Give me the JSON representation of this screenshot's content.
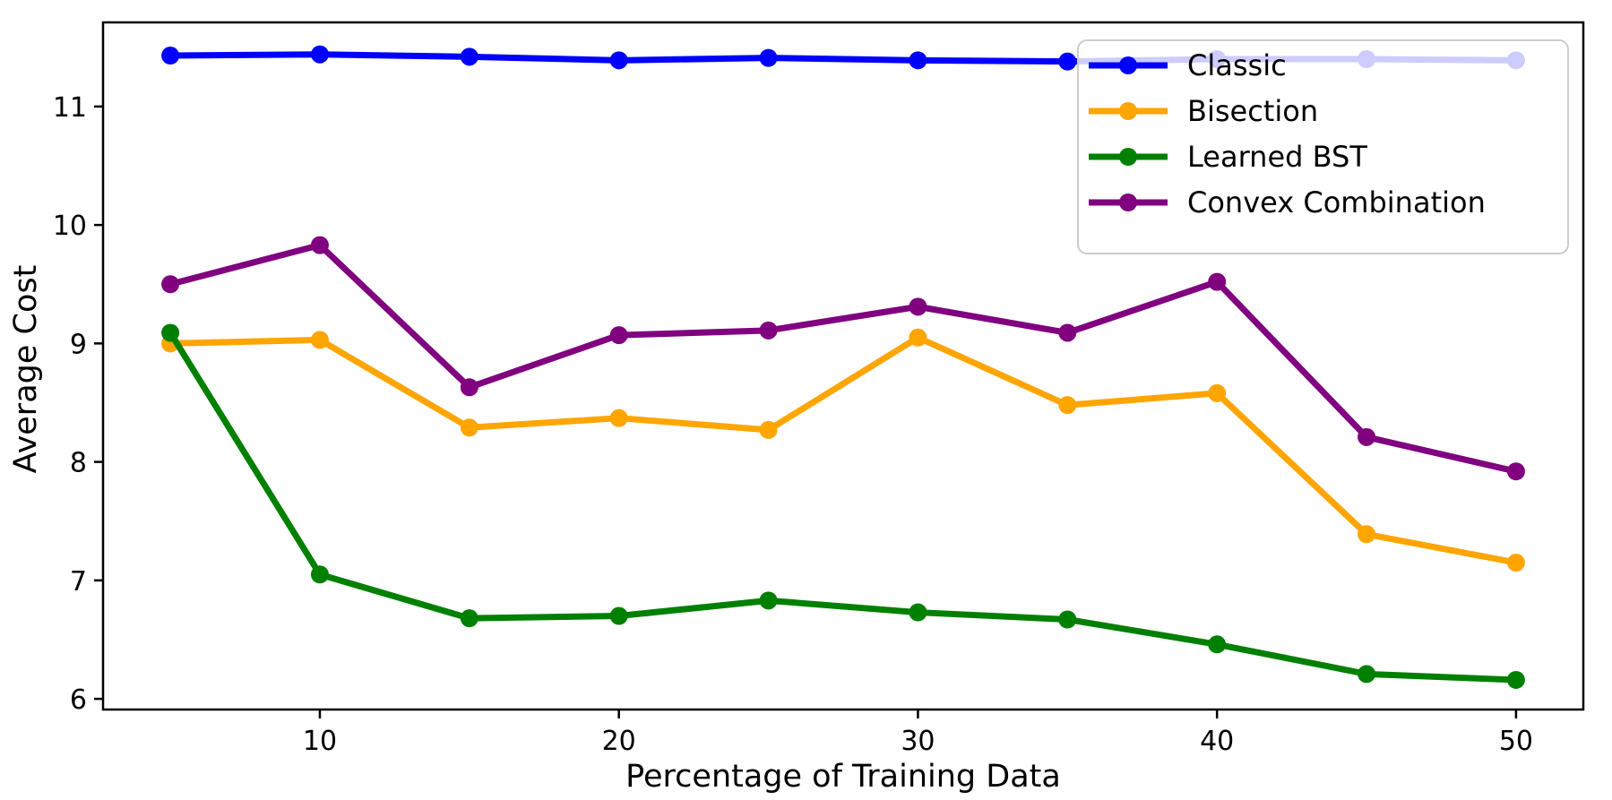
{
  "figure": {
    "background": "#ffffff",
    "spine_color": "#000000"
  },
  "chart_data": {
    "type": "line",
    "title": "",
    "xlabel": "Percentage of Training Data",
    "ylabel": "Average Cost",
    "x": [
      5,
      10,
      15,
      20,
      25,
      30,
      35,
      40,
      45,
      50
    ],
    "series": [
      {
        "name": "Classic",
        "color": "#0000ff",
        "values": [
          11.43,
          11.44,
          11.42,
          11.39,
          11.41,
          11.39,
          11.38,
          11.4,
          11.4,
          11.39
        ]
      },
      {
        "name": "Bisection",
        "color": "#ffa500",
        "values": [
          9.0,
          9.03,
          8.29,
          8.37,
          8.27,
          9.05,
          8.48,
          8.58,
          7.39,
          7.15
        ]
      },
      {
        "name": "Learned BST",
        "color": "#008000",
        "values": [
          9.09,
          7.05,
          6.68,
          6.7,
          6.83,
          6.73,
          6.67,
          6.46,
          6.21,
          6.16
        ]
      },
      {
        "name": "Convex Combination",
        "color": "#800080",
        "values": [
          9.5,
          9.83,
          8.63,
          9.07,
          9.11,
          9.31,
          9.09,
          9.52,
          8.21,
          7.92
        ]
      }
    ],
    "xticks": [
      10,
      20,
      30,
      40,
      50
    ],
    "yticks": [
      6,
      7,
      8,
      9,
      10,
      11
    ],
    "xlim": [
      2.75,
      52.25
    ],
    "ylim": [
      5.91,
      11.71
    ],
    "grid": false,
    "legend_position": "upper right",
    "legend_background_opacity": 0.8,
    "marker": "circle",
    "line_width": 7,
    "marker_radius": 10
  }
}
